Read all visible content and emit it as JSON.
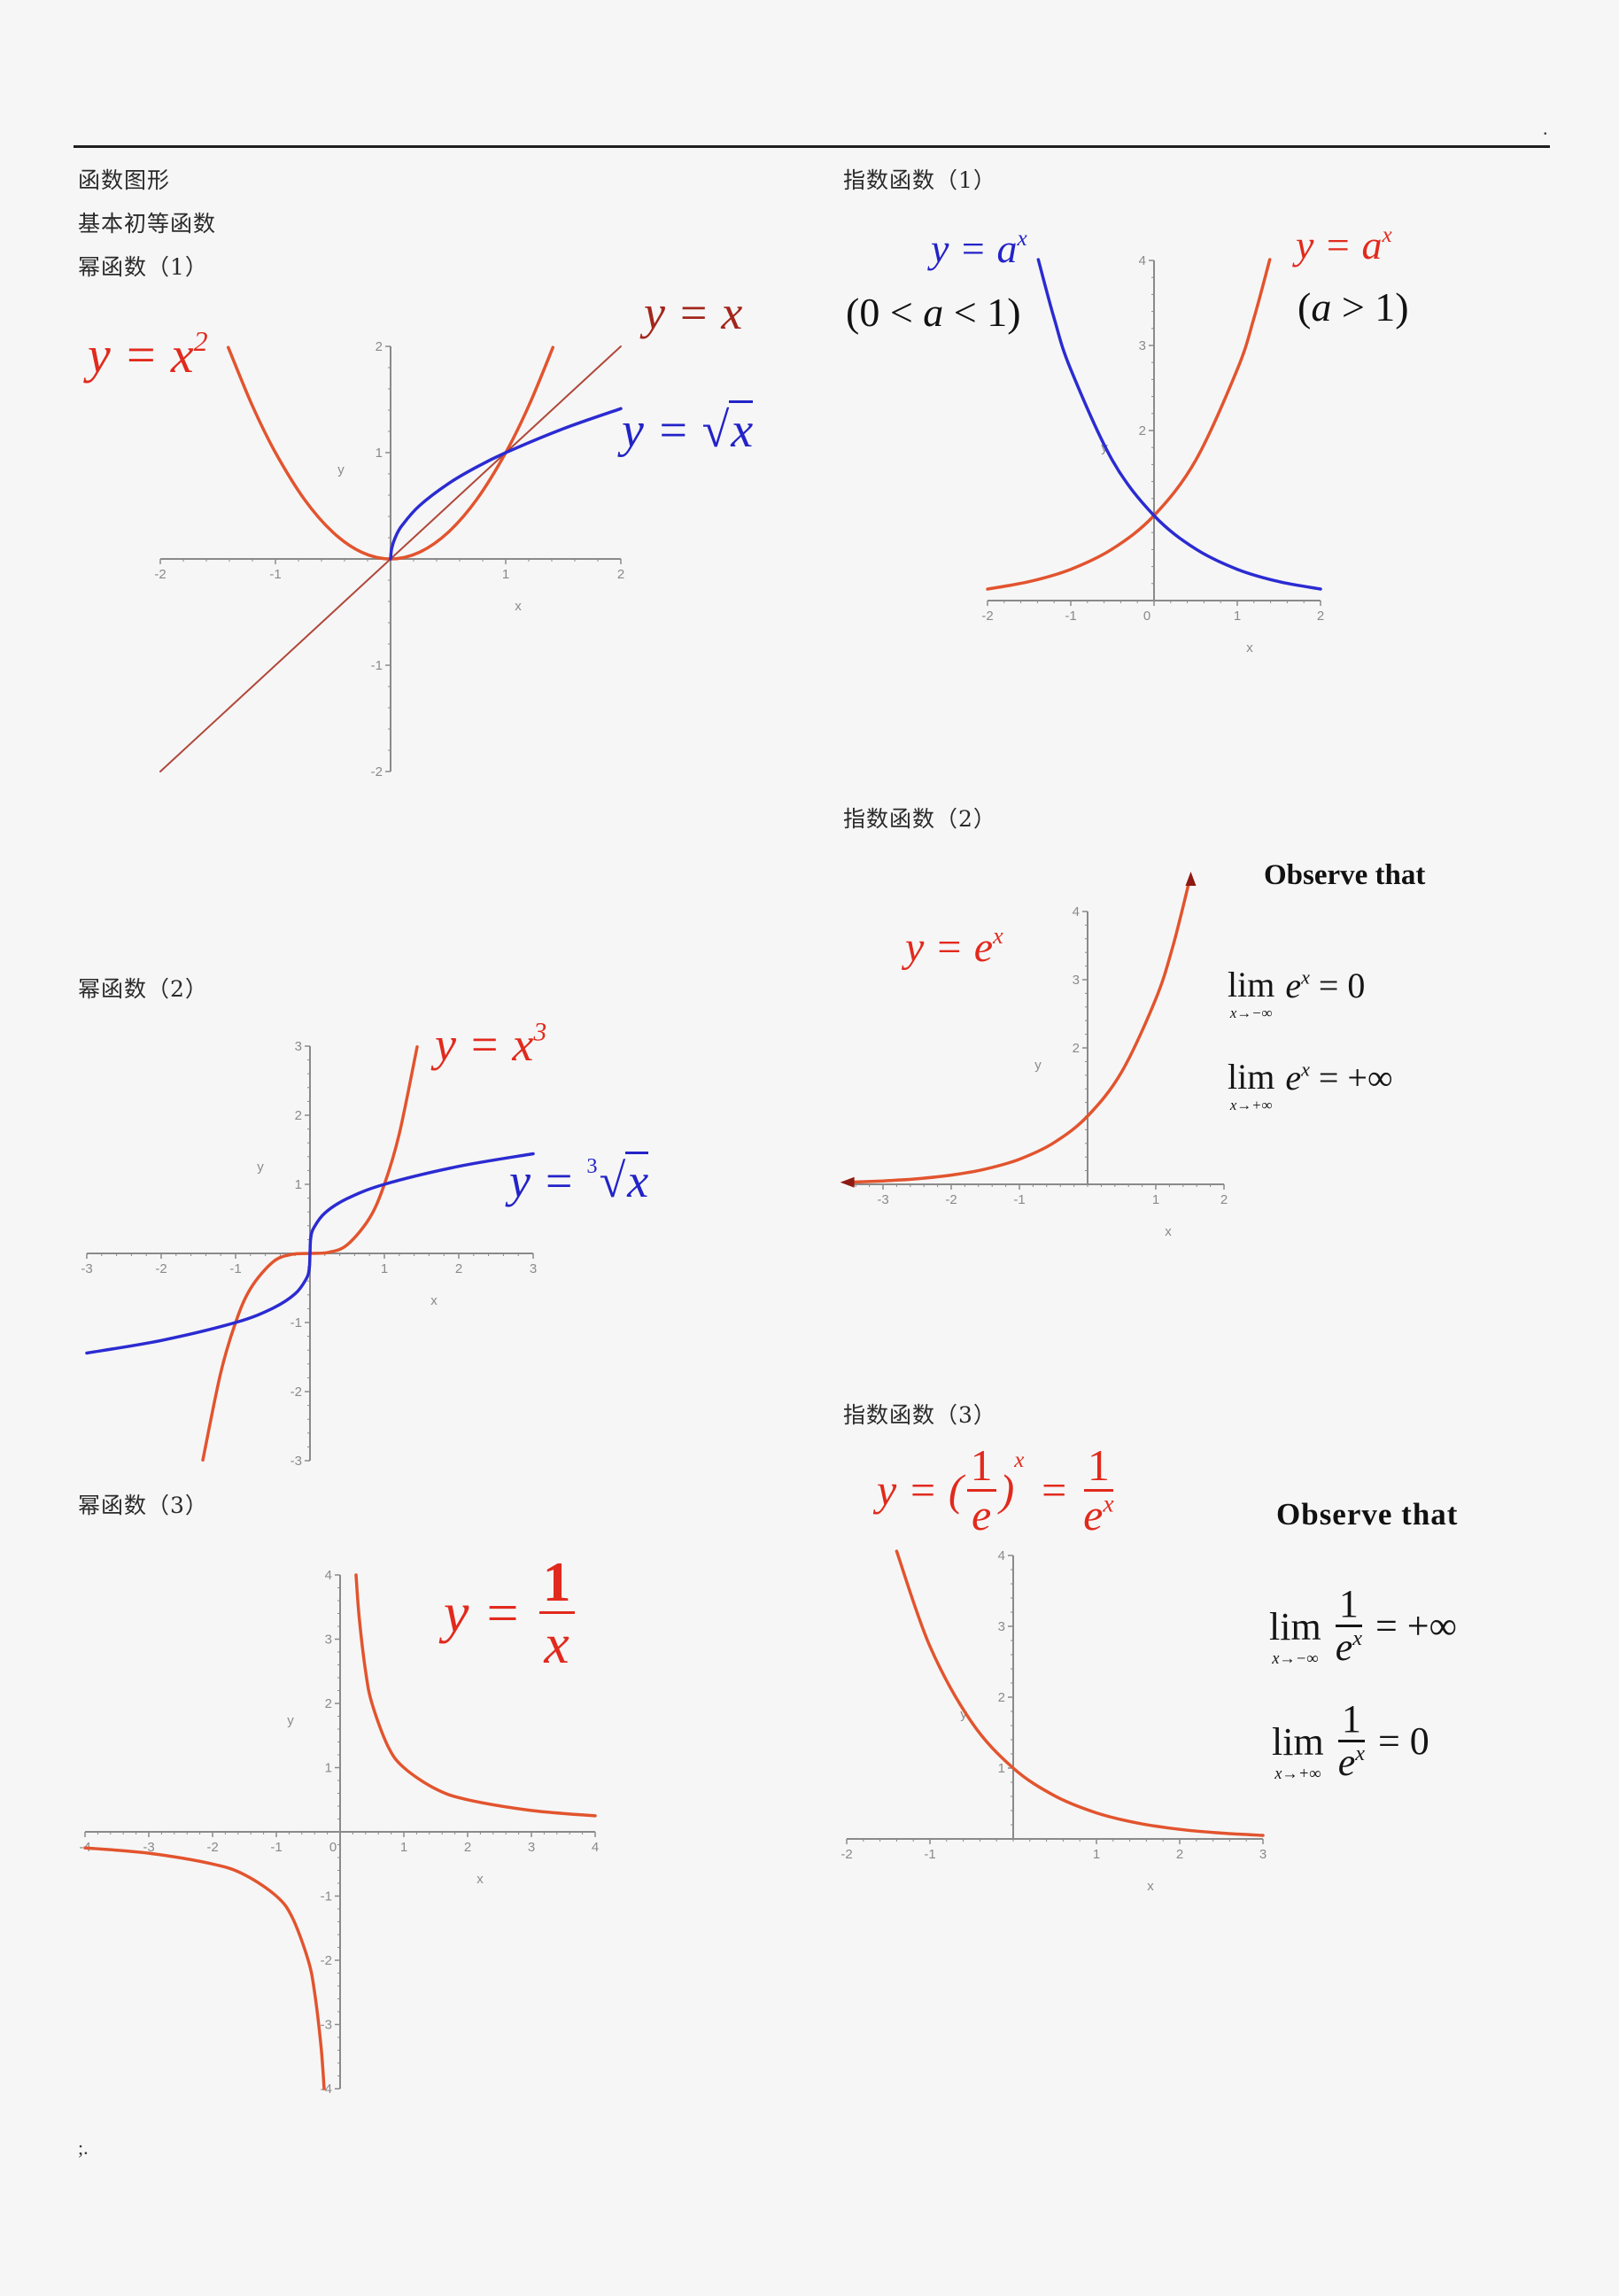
{
  "page": {
    "header_mark": ".",
    "footer_mark": ";.",
    "headings": {
      "title": "函数图形",
      "subtitle": "基本初等函数",
      "power1": "幂函数（1）",
      "power2": "幂函数（2）",
      "power3": "幂函数（3）",
      "exp1": "指数函数（1）",
      "exp2": "指数函数（2）",
      "exp3": "指数函数（3）"
    }
  },
  "formulas": {
    "x2": {
      "lhs": "y = ",
      "base": "x",
      "sup": "2"
    },
    "yx": {
      "text": "y = x"
    },
    "sqrt": {
      "lhs": "y = ",
      "root": "√",
      "body": "x"
    },
    "ax_blue": {
      "lhs": "y = ",
      "base": "a",
      "sup": "x"
    },
    "cond_blue": {
      "open": "(0 < ",
      "var": "a",
      "close": " < 1)"
    },
    "ax_red": {
      "lhs": "y = ",
      "base": "a",
      "sup": "x"
    },
    "cond_red": {
      "open": "(",
      "var": "a",
      "close": " > 1)"
    },
    "ex": {
      "lhs": "y = ",
      "base": "e",
      "sup": "x"
    },
    "inv_e": {
      "lhs": "y = (",
      "num1": "1",
      "den1": "e",
      "close": ")",
      "sup": "x",
      "eq": " = ",
      "num2": "1",
      "den2_base": "e",
      "den2_sup": "x"
    },
    "x3": {
      "lhs": "y = ",
      "base": "x",
      "sup": "3"
    },
    "cbrt": {
      "lhs": "y = ",
      "index": "3",
      "root": "√",
      "body": "x"
    },
    "recip": {
      "lhs": "y = ",
      "num": "1",
      "den": "x"
    }
  },
  "observations": {
    "exp2": {
      "heading": "Observe that",
      "limits": [
        {
          "word": "lim",
          "sub": "x→−∞",
          "base": "e",
          "sup": "x",
          "rhs": " = 0"
        },
        {
          "word": "lim",
          "sub": "x→+∞",
          "base": "e",
          "sup": "x",
          "rhs": " = +∞"
        }
      ]
    },
    "exp3": {
      "heading": "Observe that",
      "limits": [
        {
          "word": "lim",
          "sub": "x→−∞",
          "num": "1",
          "den_base": "e",
          "den_sup": "x",
          "rhs": " = +∞"
        },
        {
          "word": "lim",
          "sub": "x→+∞",
          "num": "1",
          "den_base": "e",
          "den_sup": "x",
          "rhs": " = 0"
        }
      ]
    }
  },
  "colors": {
    "orange_curve": "#e2542e",
    "identity_line": "#b0483a",
    "blue_curve": "#2b2bd2",
    "axis": "#8a8a8a",
    "tick_label": "#8a8a8a"
  },
  "chart_data": [
    {
      "id": "power1",
      "type": "line",
      "xlabel": "x",
      "ylabel": "y",
      "xlim": [
        -2,
        2
      ],
      "ylim": [
        -2,
        2
      ],
      "grid": false,
      "xticks": [
        -2,
        -1,
        1,
        2
      ],
      "yticks": [
        2,
        1,
        -1,
        -2
      ],
      "series": [
        {
          "name": "y = x²",
          "color": "#e2542e",
          "x": [
            -1.41,
            -1.2,
            -1,
            -0.75,
            -0.5,
            -0.25,
            0,
            0.25,
            0.5,
            0.75,
            1,
            1.2,
            1.41
          ],
          "y": [
            1.99,
            1.44,
            1,
            0.5625,
            0.25,
            0.0625,
            0,
            0.0625,
            0.25,
            0.5625,
            1,
            1.44,
            1.99
          ]
        },
        {
          "name": "y = x",
          "color": "#b0483a",
          "x": [
            -2,
            2
          ],
          "y": [
            -2,
            2
          ]
        },
        {
          "name": "y = √x",
          "color": "#2b2bd2",
          "x": [
            0,
            0.01,
            0.04,
            0.1,
            0.25,
            0.5,
            0.75,
            1,
            1.5,
            2
          ],
          "y": [
            0,
            0.1,
            0.2,
            0.316,
            0.5,
            0.707,
            0.866,
            1,
            1.225,
            1.414
          ]
        }
      ]
    },
    {
      "id": "exp1",
      "type": "line",
      "xlabel": "x",
      "ylabel": "y",
      "xlim": [
        -2,
        2
      ],
      "ylim": [
        0,
        4
      ],
      "grid": false,
      "xticks": [
        -2,
        -1,
        0,
        1,
        2
      ],
      "yticks": [
        2,
        3,
        4
      ],
      "series": [
        {
          "name": "y = aˣ (a > 1)",
          "color": "#e2542e",
          "x": [
            -2,
            -1.5,
            -1,
            -0.5,
            0,
            0.5,
            1,
            1.2,
            1.39
          ],
          "y": [
            0.135,
            0.223,
            0.368,
            0.607,
            1,
            1.649,
            2.718,
            3.32,
            4.01
          ]
        },
        {
          "name": "y = aˣ (0 < a < 1)",
          "color": "#2b2bd2",
          "x": [
            -1.39,
            -1.2,
            -1,
            -0.5,
            0,
            0.5,
            1,
            1.5,
            2
          ],
          "y": [
            4.01,
            3.32,
            2.718,
            1.649,
            1,
            0.607,
            0.368,
            0.223,
            0.135
          ]
        }
      ]
    },
    {
      "id": "exp2",
      "type": "line",
      "xlabel": "x",
      "ylabel": "y",
      "xlim": [
        -3.5,
        2
      ],
      "ylim": [
        0,
        4
      ],
      "grid": false,
      "xticks": [
        -3,
        -2,
        -1,
        1,
        2
      ],
      "yticks": [
        2,
        3,
        4
      ],
      "arrows": true,
      "series": [
        {
          "name": "y = eˣ",
          "color": "#e2542e",
          "x": [
            -3.55,
            -3,
            -2.5,
            -2,
            -1.5,
            -1,
            -0.5,
            0,
            0.5,
            1,
            1.25,
            1.5
          ],
          "y": [
            0.029,
            0.05,
            0.082,
            0.135,
            0.223,
            0.368,
            0.607,
            1,
            1.649,
            2.718,
            3.49,
            4.48
          ]
        }
      ]
    },
    {
      "id": "exp3",
      "type": "line",
      "xlabel": "x",
      "ylabel": "y",
      "xlim": [
        -2,
        3
      ],
      "ylim": [
        0,
        4
      ],
      "grid": false,
      "xticks": [
        -2,
        -1,
        1,
        2,
        3
      ],
      "yticks": [
        4,
        3,
        2,
        1
      ],
      "series": [
        {
          "name": "y = 1/eˣ",
          "color": "#e2542e",
          "x": [
            -1.4,
            -1,
            -0.5,
            0,
            0.5,
            1,
            1.5,
            2,
            2.5,
            3
          ],
          "y": [
            4.06,
            2.718,
            1.649,
            1,
            0.607,
            0.368,
            0.223,
            0.135,
            0.082,
            0.05
          ]
        }
      ]
    },
    {
      "id": "power2",
      "type": "line",
      "xlabel": "x",
      "ylabel": "y",
      "xlim": [
        -3,
        3
      ],
      "ylim": [
        -3,
        3
      ],
      "grid": false,
      "xticks": [
        -3,
        -2,
        -1,
        1,
        2,
        3
      ],
      "yticks": [
        3,
        2,
        1,
        -1,
        -2,
        -3
      ],
      "series": [
        {
          "name": "y = x³",
          "color": "#e2542e",
          "x": [
            -1.44,
            -1.2,
            -1,
            -0.8,
            -0.5,
            -0.25,
            0,
            0.25,
            0.5,
            0.8,
            1,
            1.2,
            1.44
          ],
          "y": [
            -2.99,
            -1.73,
            -1,
            -0.51,
            -0.125,
            -0.016,
            0,
            0.016,
            0.125,
            0.51,
            1,
            1.73,
            2.99
          ]
        },
        {
          "name": "y = ∛x",
          "color": "#2b2bd2",
          "x": [
            -3,
            -2,
            -1,
            -0.5,
            -0.2,
            -0.05,
            -0.01,
            0,
            0.01,
            0.05,
            0.2,
            0.5,
            1,
            2,
            3
          ],
          "y": [
            -1.442,
            -1.26,
            -1,
            -0.794,
            -0.585,
            -0.368,
            -0.215,
            0,
            0.215,
            0.368,
            0.585,
            0.794,
            1,
            1.26,
            1.442
          ]
        }
      ]
    },
    {
      "id": "power3",
      "type": "line",
      "xlabel": "x",
      "ylabel": "y",
      "xlim": [
        -4,
        4
      ],
      "ylim": [
        -4,
        4
      ],
      "grid": false,
      "xticks": [
        -4,
        -3,
        -2,
        -1,
        0,
        1,
        2,
        3,
        4
      ],
      "yticks": [
        4,
        3,
        2,
        1,
        -1,
        -2,
        -3,
        -4
      ],
      "series": [
        {
          "name": "y = 1/x (x > 0)",
          "color": "#e2542e",
          "x": [
            0.25,
            0.3,
            0.4,
            0.5,
            0.75,
            1,
            1.5,
            2,
            3,
            4
          ],
          "y": [
            4,
            3.333,
            2.5,
            2,
            1.333,
            1,
            0.667,
            0.5,
            0.333,
            0.25
          ]
        },
        {
          "name": "y = 1/x (x < 0)",
          "color": "#e2542e",
          "x": [
            -4,
            -3,
            -2,
            -1.5,
            -1,
            -0.75,
            -0.5,
            -0.4,
            -0.3,
            -0.25
          ],
          "y": [
            -0.25,
            -0.333,
            -0.5,
            -0.667,
            -1,
            -1.333,
            -2,
            -2.5,
            -3.333,
            -4
          ]
        }
      ]
    }
  ]
}
